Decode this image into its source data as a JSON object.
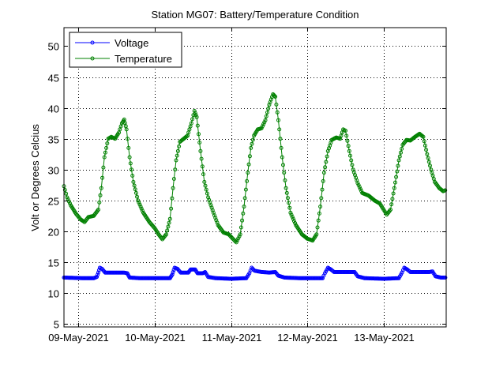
{
  "chart_data": {
    "type": "line",
    "title": "Station MG07: Battery/Temperature Condition",
    "xlabel": "",
    "ylabel": "Volt or Degrees Celcius",
    "x_units": "days since 09-May-2021 00:00",
    "xlim": [
      -0.19,
      4.82
    ],
    "ylim": [
      4.5,
      53
    ],
    "grid": true,
    "legend_position": "top-left",
    "x_ticks": [
      0,
      1,
      2,
      3,
      4
    ],
    "x_tick_labels": [
      "09-May-2021",
      "10-May-2021",
      "11-May-2021",
      "12-May-2021",
      "13-May-2021"
    ],
    "y_ticks": [
      5,
      10,
      15,
      20,
      25,
      30,
      35,
      40,
      45,
      50
    ],
    "y_tick_labels": [
      "5",
      "10",
      "15",
      "20",
      "25",
      "30",
      "35",
      "40",
      "45",
      "50"
    ],
    "series": [
      {
        "name": "Voltage",
        "color": "#0000ff",
        "points": [
          [
            -0.19,
            12.5
          ],
          [
            0.05,
            12.4
          ],
          [
            0.2,
            12.4
          ],
          [
            0.24,
            12.6
          ],
          [
            0.26,
            13.3
          ],
          [
            0.28,
            14.1
          ],
          [
            0.31,
            13.9
          ],
          [
            0.35,
            13.3
          ],
          [
            0.6,
            13.3
          ],
          [
            0.64,
            13.2
          ],
          [
            0.67,
            12.5
          ],
          [
            0.8,
            12.4
          ],
          [
            1.0,
            12.4
          ],
          [
            1.2,
            12.4
          ],
          [
            1.23,
            13.0
          ],
          [
            1.26,
            14.1
          ],
          [
            1.3,
            13.9
          ],
          [
            1.34,
            13.3
          ],
          [
            1.44,
            13.3
          ],
          [
            1.47,
            13.8
          ],
          [
            1.53,
            13.8
          ],
          [
            1.56,
            13.2
          ],
          [
            1.63,
            13.2
          ],
          [
            1.66,
            13.4
          ],
          [
            1.7,
            12.6
          ],
          [
            1.8,
            12.4
          ],
          [
            2.0,
            12.3
          ],
          [
            2.2,
            12.4
          ],
          [
            2.24,
            13.2
          ],
          [
            2.27,
            14.1
          ],
          [
            2.31,
            13.6
          ],
          [
            2.4,
            13.4
          ],
          [
            2.5,
            13.3
          ],
          [
            2.58,
            13.4
          ],
          [
            2.62,
            12.8
          ],
          [
            2.7,
            12.5
          ],
          [
            2.9,
            12.4
          ],
          [
            3.2,
            12.4
          ],
          [
            3.23,
            13.2
          ],
          [
            3.27,
            14.1
          ],
          [
            3.31,
            13.8
          ],
          [
            3.35,
            13.4
          ],
          [
            3.55,
            13.4
          ],
          [
            3.62,
            13.4
          ],
          [
            3.66,
            12.7
          ],
          [
            3.75,
            12.4
          ],
          [
            4.0,
            12.3
          ],
          [
            4.2,
            12.4
          ],
          [
            4.24,
            13.3
          ],
          [
            4.27,
            14.1
          ],
          [
            4.31,
            13.8
          ],
          [
            4.35,
            13.4
          ],
          [
            4.6,
            13.4
          ],
          [
            4.64,
            13.5
          ],
          [
            4.68,
            12.7
          ],
          [
            4.75,
            12.5
          ],
          [
            4.82,
            12.5
          ]
        ]
      },
      {
        "name": "Temperature",
        "color": "#008000",
        "points": [
          [
            -0.19,
            27.3
          ],
          [
            -0.15,
            25.5
          ],
          [
            -0.1,
            24.2
          ],
          [
            -0.03,
            22.8
          ],
          [
            0.03,
            21.9
          ],
          [
            0.08,
            21.5
          ],
          [
            0.13,
            22.3
          ],
          [
            0.2,
            22.5
          ],
          [
            0.26,
            23.5
          ],
          [
            0.3,
            27.0
          ],
          [
            0.34,
            32.0
          ],
          [
            0.39,
            35.0
          ],
          [
            0.43,
            35.3
          ],
          [
            0.48,
            35.0
          ],
          [
            0.53,
            36.0
          ],
          [
            0.57,
            37.5
          ],
          [
            0.6,
            38.1
          ],
          [
            0.63,
            36.5
          ],
          [
            0.67,
            32.0
          ],
          [
            0.72,
            28.0
          ],
          [
            0.78,
            25.0
          ],
          [
            0.85,
            23.0
          ],
          [
            0.93,
            21.5
          ],
          [
            1.0,
            20.5
          ],
          [
            1.05,
            19.5
          ],
          [
            1.1,
            18.7
          ],
          [
            1.15,
            19.5
          ],
          [
            1.2,
            22.0
          ],
          [
            1.24,
            27.0
          ],
          [
            1.28,
            31.5
          ],
          [
            1.33,
            34.5
          ],
          [
            1.38,
            35.0
          ],
          [
            1.43,
            35.5
          ],
          [
            1.48,
            37.5
          ],
          [
            1.52,
            39.5
          ],
          [
            1.55,
            38.5
          ],
          [
            1.6,
            33.0
          ],
          [
            1.65,
            28.0
          ],
          [
            1.7,
            25.5
          ],
          [
            1.77,
            23.0
          ],
          [
            1.83,
            21.0
          ],
          [
            1.9,
            19.8
          ],
          [
            1.97,
            19.5
          ],
          [
            2.03,
            18.7
          ],
          [
            2.07,
            18.2
          ],
          [
            2.12,
            19.5
          ],
          [
            2.17,
            24.0
          ],
          [
            2.22,
            29.5
          ],
          [
            2.26,
            33.5
          ],
          [
            2.3,
            35.5
          ],
          [
            2.35,
            36.5
          ],
          [
            2.4,
            36.7
          ],
          [
            2.45,
            38.0
          ],
          [
            2.5,
            40.5
          ],
          [
            2.55,
            42.2
          ],
          [
            2.58,
            41.8
          ],
          [
            2.62,
            38.0
          ],
          [
            2.67,
            32.0
          ],
          [
            2.72,
            27.0
          ],
          [
            2.78,
            23.0
          ],
          [
            2.85,
            21.0
          ],
          [
            2.93,
            19.5
          ],
          [
            3.0,
            18.8
          ],
          [
            3.07,
            18.5
          ],
          [
            3.12,
            19.5
          ],
          [
            3.17,
            24.0
          ],
          [
            3.22,
            29.5
          ],
          [
            3.27,
            33.0
          ],
          [
            3.32,
            34.8
          ],
          [
            3.38,
            35.2
          ],
          [
            3.43,
            35.0
          ],
          [
            3.47,
            36.5
          ],
          [
            3.5,
            36.3
          ],
          [
            3.55,
            33.0
          ],
          [
            3.6,
            30.0
          ],
          [
            3.66,
            27.8
          ],
          [
            3.72,
            26.2
          ],
          [
            3.8,
            25.8
          ],
          [
            3.88,
            25.0
          ],
          [
            3.95,
            24.5
          ],
          [
            4.0,
            23.5
          ],
          [
            4.04,
            22.7
          ],
          [
            4.09,
            23.5
          ],
          [
            4.14,
            27.0
          ],
          [
            4.2,
            31.5
          ],
          [
            4.25,
            34.0
          ],
          [
            4.3,
            34.8
          ],
          [
            4.35,
            34.7
          ],
          [
            4.4,
            35.2
          ],
          [
            4.47,
            35.8
          ],
          [
            4.52,
            35.3
          ],
          [
            4.57,
            32.5
          ],
          [
            4.62,
            30.0
          ],
          [
            4.67,
            28.0
          ],
          [
            4.73,
            27.0
          ],
          [
            4.78,
            26.5
          ],
          [
            4.82,
            26.7
          ]
        ]
      }
    ]
  }
}
